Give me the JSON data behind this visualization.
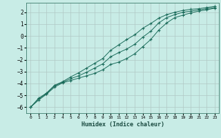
{
  "xlabel": "Humidex (Indice chaleur)",
  "background_color": "#c8ece6",
  "grid_color": "#b0c8c4",
  "line_color": "#1a6b5a",
  "xlim": [
    -0.5,
    23.5
  ],
  "ylim": [
    -6.5,
    2.8
  ],
  "yticks": [
    -6,
    -5,
    -4,
    -3,
    -2,
    -1,
    0,
    1,
    2
  ],
  "xticks": [
    0,
    1,
    2,
    3,
    4,
    5,
    6,
    7,
    8,
    9,
    10,
    11,
    12,
    13,
    14,
    15,
    16,
    17,
    18,
    19,
    20,
    21,
    22,
    23
  ],
  "series_x": [
    0,
    1,
    2,
    3,
    4,
    5,
    6,
    7,
    8,
    9,
    10,
    11,
    12,
    13,
    14,
    15,
    16,
    17,
    18,
    19,
    20,
    21,
    22,
    23
  ],
  "series": [
    [
      -6.0,
      -5.4,
      -4.9,
      -4.3,
      -3.95,
      -3.75,
      -3.55,
      -3.35,
      -3.15,
      -2.85,
      -2.4,
      -2.2,
      -1.9,
      -1.5,
      -0.9,
      -0.3,
      0.5,
      1.1,
      1.55,
      1.75,
      1.95,
      2.1,
      2.2,
      2.35
    ],
    [
      -6.0,
      -5.3,
      -4.85,
      -4.2,
      -3.9,
      -3.6,
      -3.35,
      -3.05,
      -2.7,
      -2.35,
      -1.75,
      -1.4,
      -1.1,
      -0.7,
      -0.1,
      0.4,
      1.1,
      1.55,
      1.8,
      2.0,
      2.1,
      2.2,
      2.3,
      2.4
    ],
    [
      -6.0,
      -5.25,
      -4.8,
      -4.15,
      -3.85,
      -3.45,
      -3.1,
      -2.7,
      -2.3,
      -1.9,
      -1.2,
      -0.75,
      -0.3,
      0.1,
      0.65,
      1.05,
      1.5,
      1.8,
      2.0,
      2.15,
      2.25,
      2.3,
      2.4,
      2.5
    ]
  ]
}
